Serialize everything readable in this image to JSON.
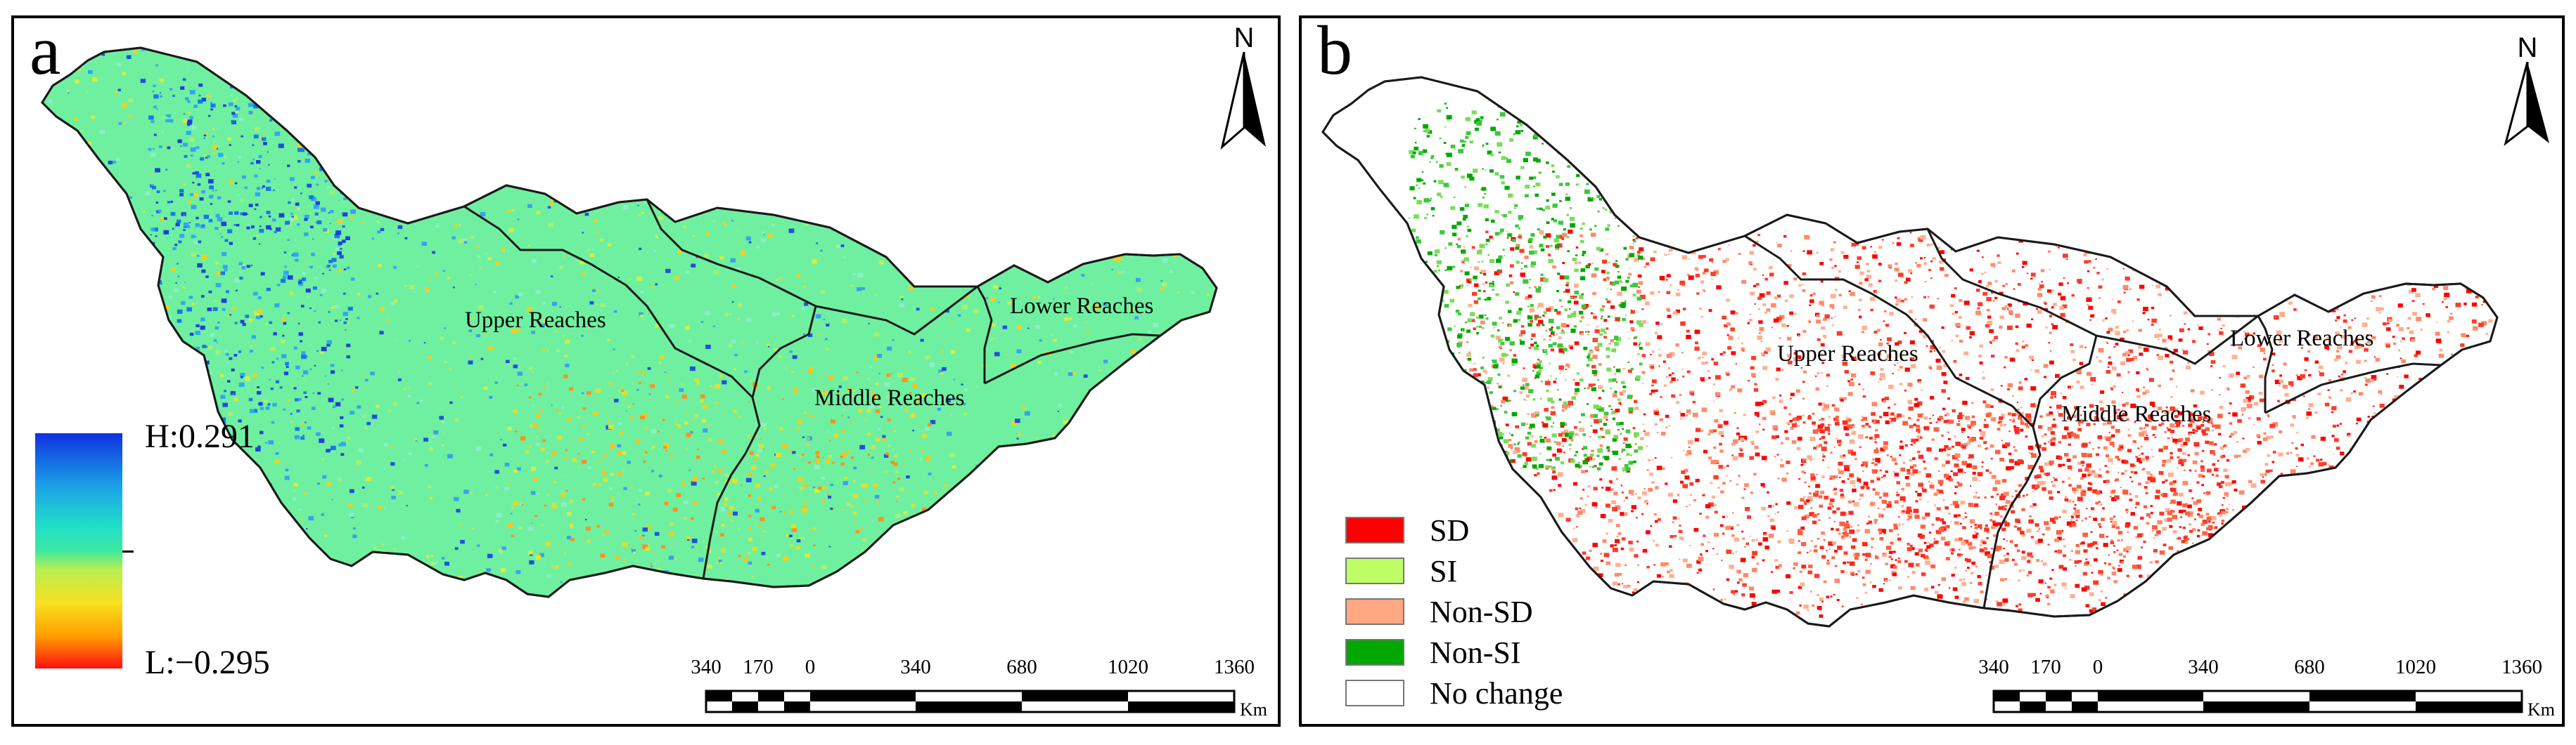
{
  "panels": [
    {
      "id": "a",
      "label": "a",
      "north": "N",
      "regions": {
        "upper": "Upper Reaches",
        "middle": "Middle Reaches",
        "lower": "Lower Reaches"
      },
      "colorbar": {
        "high": "H:0.291",
        "low": "L:−0.295",
        "high_value": 0.291,
        "low_value": -0.295
      },
      "scale": {
        "ticks": [
          "340",
          "170",
          "0",
          "340",
          "680",
          "1020",
          "1360"
        ],
        "unit": "Km"
      }
    },
    {
      "id": "b",
      "label": "b",
      "north": "N",
      "regions": {
        "upper": "Upper Reaches",
        "middle": "Middle Reaches",
        "lower": "Lower Reaches"
      },
      "legend": [
        {
          "label": "SD",
          "color": "#ff0000"
        },
        {
          "label": "SI",
          "color": "#bfff66"
        },
        {
          "label": "Non-SD",
          "color": "#ffa882"
        },
        {
          "label": "Non-SI",
          "color": "#00a800"
        },
        {
          "label": "No change",
          "color": "#ffffff"
        }
      ],
      "scale": {
        "ticks": [
          "340",
          "170",
          "0",
          "340",
          "680",
          "1020",
          "1360"
        ],
        "unit": "Km"
      }
    }
  ],
  "colors": {
    "base_a": "#6ff0a0",
    "outline": "#1a1a1a"
  }
}
